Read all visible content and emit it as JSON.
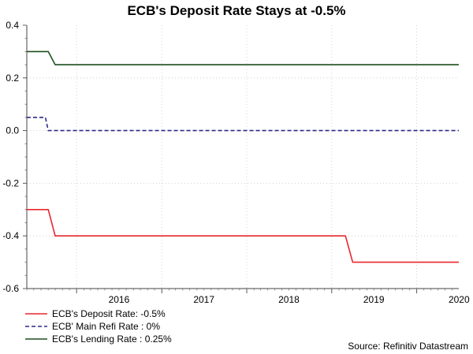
{
  "chart_data": {
    "type": "line",
    "title": "ECB's Deposit Rate Stays at -0.5%",
    "xlabel": "",
    "ylabel": "",
    "ylim": [
      -0.6,
      0.4
    ],
    "xlim": [
      "2015-06-01",
      "2020-06-30"
    ],
    "y_ticks": [
      "0.4",
      "0.2",
      "0.0",
      "-0.2",
      "-0.4",
      "-0.6"
    ],
    "x_ticks": [
      "2016",
      "2017",
      "2018",
      "2019",
      "2020"
    ],
    "grid": true,
    "legend_position": "bottom-left",
    "series": [
      {
        "name": "ECB's Deposit Rate: -0.5%",
        "color": "#e8272d",
        "dash": "solid",
        "points": [
          [
            "2015-06-01",
            -0.3
          ],
          [
            "2015-09-01",
            -0.3
          ],
          [
            "2015-10-01",
            -0.4
          ],
          [
            "2019-03-01",
            -0.4
          ],
          [
            "2019-04-01",
            -0.5
          ],
          [
            "2020-06-30",
            -0.5
          ]
        ]
      },
      {
        "name": "ECB' Main Refi Rate : 0%",
        "color": "#2a2a8a",
        "dash": "dashed",
        "points": [
          [
            "2015-06-01",
            0.05
          ],
          [
            "2015-08-20",
            0.05
          ],
          [
            "2015-09-01",
            0.0
          ],
          [
            "2020-06-30",
            0.0
          ]
        ]
      },
      {
        "name": "ECB's Lending Rate : 0.25%",
        "color": "#1e4d1e",
        "dash": "solid",
        "points": [
          [
            "2015-06-01",
            0.3
          ],
          [
            "2015-09-01",
            0.3
          ],
          [
            "2015-10-01",
            0.25
          ],
          [
            "2020-06-30",
            0.25
          ]
        ]
      }
    ]
  },
  "source": "Source: Refinitiv Datastream"
}
